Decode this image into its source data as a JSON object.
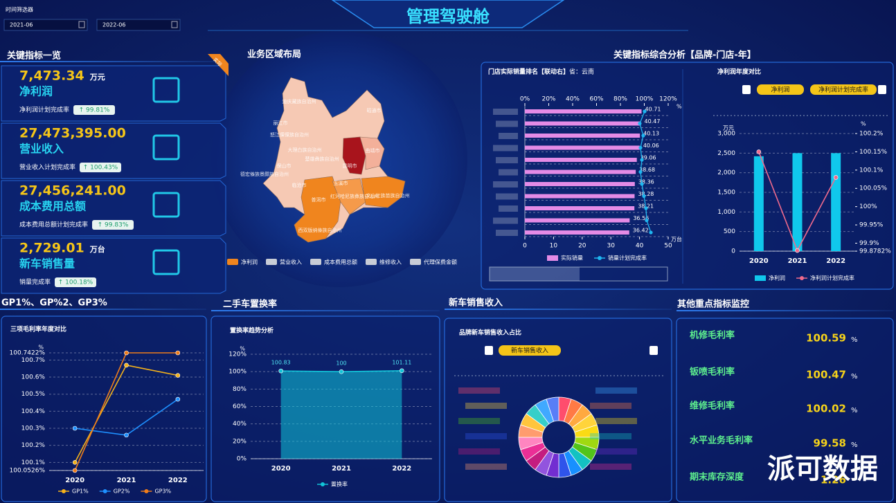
{
  "header": {
    "title": "管理驾驶舱",
    "filter_label": "时间筛选器",
    "start_date": "2021-06",
    "end_date": "2022-06"
  },
  "kpi_panel": {
    "title": "关键指标一览",
    "badge": "实际",
    "items": [
      {
        "value": "7,473.34",
        "unit": "万元",
        "name": "净利润",
        "rate_label": "净利润计划完成率",
        "rate": "↑ 99.81%"
      },
      {
        "value": "27,473,395.00",
        "name": "营业收入",
        "rate_label": "营业收入计划完成率",
        "rate": "↑ 100.43%"
      },
      {
        "value": "27,456,241.00",
        "name": "成本费用总额",
        "rate_label": "成本费用总额计划完成率",
        "rate": "↑ 99.83%"
      },
      {
        "value": "2,729.01",
        "unit": "万台",
        "name": "新车销售量",
        "rate_label": "销量完成率",
        "rate": "↑ 100.18%"
      }
    ]
  },
  "map_panel": {
    "title": "业务区域布局",
    "regions": [
      "迪庆藏族自治州",
      "丽江市",
      "怒江傈僳族自治州",
      "昭通市",
      "大理白族自治州",
      "楚雄彝族自治州",
      "曲靖市",
      "昆明市",
      "保山市",
      "德宏傣族景颇族自治州",
      "临沧市",
      "玉溪市",
      "普洱市",
      "红河哈尼族彝族自治州",
      "文山壮族苗族自治州",
      "西双版纳傣族自治州"
    ],
    "legend": [
      "净利润",
      "营业收入",
      "成本费用总额",
      "维修收入",
      "代理保费金额"
    ]
  },
  "analysis_panel": {
    "title": "关键指标综合分析【品牌-门店-年】"
  },
  "gp_panel": {
    "title": "GP1%、GP%2、GP3%"
  },
  "used_car_panel": {
    "title": "二手车置换率"
  },
  "new_car_panel": {
    "title": "新车销售收入"
  },
  "other_panel": {
    "title": "其他重点指标监控",
    "items": [
      {
        "name": "机修毛利率",
        "value": "100.59",
        "unit": "%"
      },
      {
        "name": "钣喷毛利率",
        "value": "100.47",
        "unit": "%"
      },
      {
        "name": "维修毛利率",
        "value": "100.02",
        "unit": "%"
      },
      {
        "name": "水平业务毛利率",
        "value": "99.58",
        "unit": "%"
      },
      {
        "name": "期末库存深度",
        "value": "1.26"
      }
    ]
  },
  "watermark": "派可数据",
  "chart_data": [
    {
      "type": "bar",
      "orientation": "horizontal",
      "title": "门店实际销量排名【联动右】",
      "subtitle": "省：云南",
      "categories": [
        null,
        null,
        null,
        null,
        null,
        null,
        null,
        null,
        null,
        null,
        null
      ],
      "series": [
        {
          "name": "实际销量",
          "color": "#e48be6",
          "values": [
            40.71,
            40.47,
            40.13,
            40.06,
            39.06,
            38.68,
            38.36,
            38.28,
            38.21,
            36.56,
            36.42
          ]
        },
        {
          "name": "销量计划完成率",
          "type": "line",
          "axis": "x2",
          "color": "#1fb6f0",
          "values": [
            100.3,
            96.2,
            99.1,
            96.8,
            98,
            96.8,
            98,
            99.7,
            101.4,
            102,
            105.5
          ]
        }
      ],
      "xlim": [
        0,
        50
      ],
      "xticks": [
        0,
        10,
        20,
        30,
        40,
        50
      ],
      "x_unit": "万台",
      "x2lim": [
        0,
        120
      ],
      "x2ticks": [
        {
          "value": 0,
          "label": "0%"
        },
        {
          "value": 20,
          "label": "20%"
        },
        {
          "value": 40,
          "label": "40%"
        },
        {
          "value": 60,
          "label": "60%"
        },
        {
          "value": 80,
          "label": "80%"
        },
        {
          "value": 100,
          "label": "100%"
        },
        {
          "value": 120,
          "label": "120%"
        }
      ],
      "x2_unit": "%"
    },
    {
      "type": "bar",
      "title": "净利润年度对比",
      "controls": [
        "净利润",
        "净利润计划完成率"
      ],
      "categories": [
        "2020",
        "2021",
        "2022"
      ],
      "series": [
        {
          "name": "净利润",
          "color": "#10c8ec",
          "values": [
            2420,
            2500,
            2500
          ]
        },
        {
          "name": "净利润计划完成率",
          "type": "line",
          "axis": "y2",
          "color": "#f06a8c",
          "values": [
            100.15,
            99.88,
            100.08
          ]
        }
      ],
      "ylim": [
        0,
        3000
      ],
      "yticks": [
        0,
        500,
        {
          "value": 1000,
          "label": "1,000"
        },
        {
          "value": 1500,
          "label": "1,500"
        },
        {
          "value": 2000,
          "label": "2,000"
        },
        {
          "value": 2500,
          "label": "2,500"
        },
        {
          "value": 3000,
          "label": "3,000"
        }
      ],
      "y_unit": "万元",
      "y2lim": [
        99.8782,
        100.2
      ],
      "y2ticks": [
        {
          "value": 99.8782,
          "label": "99.8782%"
        },
        {
          "value": 99.9,
          "label": "99.9%"
        },
        {
          "value": 99.95,
          "label": "99.95%"
        },
        {
          "value": 100,
          "label": "100%"
        },
        {
          "value": 100.05,
          "label": "100.05%"
        },
        {
          "value": 100.1,
          "label": "100.1%"
        },
        {
          "value": 100.15,
          "label": "100.15%"
        },
        {
          "value": 100.2,
          "label": "100.2%"
        }
      ],
      "y2_unit": "%",
      "grid": true
    },
    {
      "type": "line",
      "title": "三项毛利率年度对比",
      "categories": [
        "2020",
        "2021",
        "2022"
      ],
      "series": [
        {
          "name": "GP1%",
          "color": "#f5b21a",
          "values": [
            100.1,
            100.67,
            100.61
          ]
        },
        {
          "name": "GP2%",
          "color": "#1e90ff",
          "values": [
            100.3,
            100.26,
            100.47
          ]
        },
        {
          "name": "GP3%",
          "color": "#f07d1a",
          "values": [
            100.0526,
            100.7422,
            100.7422
          ]
        }
      ],
      "ylim": [
        100.0526,
        100.7422
      ],
      "yticks": [
        {
          "value": 100.0526,
          "label": "100.0526%"
        },
        {
          "value": 100.1,
          "label": "100.1%"
        },
        {
          "value": 100.2,
          "label": "100.2%"
        },
        {
          "value": 100.3,
          "label": "100.3%"
        },
        {
          "value": 100.4,
          "label": "100.4%"
        },
        {
          "value": 100.5,
          "label": "100.5%"
        },
        {
          "value": 100.6,
          "label": "100.6%"
        },
        {
          "value": 100.7,
          "label": "100.7%"
        },
        {
          "value": 100.7422,
          "label": "100.7422%"
        }
      ],
      "y_unit": "%",
      "grid": true
    },
    {
      "type": "area",
      "title": "置换率趋势分析",
      "categories": [
        "2020",
        "2021",
        "2022"
      ],
      "series": [
        {
          "name": "置换率",
          "color": "#11c4d8",
          "values": [
            100.83,
            100,
            101.11
          ]
        }
      ],
      "ylim": [
        0,
        120
      ],
      "yticks": [
        {
          "value": 0,
          "label": "0%"
        },
        {
          "value": 20,
          "label": "20%"
        },
        {
          "value": 40,
          "label": "40%"
        },
        {
          "value": 60,
          "label": "60%"
        },
        {
          "value": 80,
          "label": "80%"
        },
        {
          "value": 100,
          "label": "100%"
        },
        {
          "value": 120,
          "label": "120%"
        }
      ],
      "y_unit": "%",
      "grid": true
    },
    {
      "type": "pie",
      "title": "品牌新车销售收入占比",
      "controls": [
        "新车销售收入"
      ],
      "categories": [
        null,
        null,
        null,
        null,
        null,
        null,
        null,
        null,
        null,
        null,
        null,
        null,
        null,
        null,
        null,
        null,
        null,
        null,
        null,
        null
      ],
      "values": [
        5,
        5,
        5,
        5,
        5,
        5,
        5,
        5,
        5,
        5,
        5,
        5,
        5,
        5,
        5,
        5,
        5,
        5,
        5,
        5
      ],
      "colors": [
        "#ff4d6d",
        "#ff7a45",
        "#ffa940",
        "#ffd43b",
        "#fadb14",
        "#a0d911",
        "#52c41a",
        "#13c2c2",
        "#1890ff",
        "#2f54eb",
        "#722ed1",
        "#9254de",
        "#c41d7f",
        "#eb2f96",
        "#ff85c0",
        "#ff9c6e",
        "#ffc53d",
        "#36cfc9",
        "#40a9ff",
        "#597ef7"
      ],
      "donut": true
    }
  ]
}
